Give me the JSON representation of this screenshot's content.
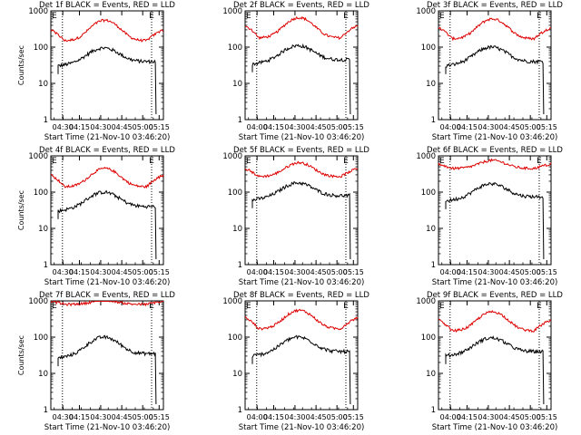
{
  "figure": {
    "start_time_label": "Start Time (21-Nov-10 03:46:20)",
    "ylabel": "Counts/sec",
    "x_tick_labels_a": [
      "04:00",
      "04:15",
      "04:30",
      "04:45",
      "05:00",
      "05:15"
    ],
    "x_tick_labels_b": [
      "04:30",
      "04:15",
      "04:30",
      "04:45",
      "05:00",
      "05:15"
    ],
    "y_tick_labels": [
      "1",
      "10",
      "100",
      "1000"
    ],
    "flag_label": "E",
    "colors": {
      "events": "#000000",
      "lld": "#dd0000",
      "axes": "#000000"
    }
  },
  "chart_data": [
    {
      "type": "line",
      "panel": 1,
      "title": "Det 1f BLACK = Events, RED = LLD",
      "xticks": [
        "04:30",
        "04:15",
        "04:30",
        "04:45",
        "05:00",
        "05:15"
      ],
      "ylabel": "Counts/sec",
      "xlabel": "Start Time (21-Nov-10 03:46:20)",
      "yscale": "log",
      "ylim": [
        1,
        1000
      ],
      "series": [
        {
          "name": "Events",
          "color": "#000000",
          "baseline": 40,
          "peak": 95
        },
        {
          "name": "LLD",
          "color": "#dd0000",
          "edge": 300,
          "trough": 150,
          "peak": 550
        }
      ]
    },
    {
      "type": "line",
      "panel": 2,
      "title": "Det 2f BLACK = Events, RED = LLD",
      "xticks": [
        "04:00",
        "04:15",
        "04:30",
        "04:45",
        "05:00",
        "05:15"
      ],
      "ylabel": "",
      "xlabel": "Start Time (21-Nov-10 03:46:20)",
      "yscale": "log",
      "ylim": [
        1,
        1000
      ],
      "series": [
        {
          "name": "Events",
          "color": "#000000",
          "baseline": 45,
          "peak": 110
        },
        {
          "name": "LLD",
          "color": "#dd0000",
          "edge": 400,
          "trough": 180,
          "peak": 650
        }
      ]
    },
    {
      "type": "line",
      "panel": 3,
      "title": "Det 3f BLACK = Events, RED = LLD",
      "xticks": [
        "04:00",
        "04:15",
        "04:30",
        "04:45",
        "05:00",
        "05:15"
      ],
      "ylabel": "",
      "xlabel": "Start Time (21-Nov-10 03:46:20)",
      "yscale": "log",
      "ylim": [
        1,
        1000
      ],
      "series": [
        {
          "name": "Events",
          "color": "#000000",
          "baseline": 40,
          "peak": 100
        },
        {
          "name": "LLD",
          "color": "#dd0000",
          "edge": 350,
          "trough": 170,
          "peak": 600
        }
      ]
    },
    {
      "type": "line",
      "panel": 4,
      "title": "Det 4f BLACK = Events, RED = LLD",
      "xticks": [
        "04:30",
        "04:15",
        "04:30",
        "04:45",
        "05:00",
        "05:15"
      ],
      "ylabel": "Counts/sec",
      "xlabel": "Start Time (21-Nov-10 03:46:20)",
      "yscale": "log",
      "ylim": [
        1,
        1000
      ],
      "series": [
        {
          "name": "Events",
          "color": "#000000",
          "baseline": 40,
          "peak": 100
        },
        {
          "name": "LLD",
          "color": "#dd0000",
          "edge": 300,
          "trough": 140,
          "peak": 450
        }
      ]
    },
    {
      "type": "line",
      "panel": 5,
      "title": "Det 5f BLACK = Events, RED = LLD",
      "xticks": [
        "04:00",
        "04:15",
        "04:30",
        "04:45",
        "05:00",
        "05:15"
      ],
      "ylabel": "",
      "xlabel": "Start Time (21-Nov-10 03:46:20)",
      "yscale": "log",
      "ylim": [
        1,
        1000
      ],
      "series": [
        {
          "name": "Events",
          "color": "#000000",
          "baseline": 80,
          "peak": 180
        },
        {
          "name": "LLD",
          "color": "#dd0000",
          "edge": 450,
          "trough": 270,
          "peak": 650
        }
      ]
    },
    {
      "type": "line",
      "panel": 6,
      "title": "Det 6f BLACK = Events, RED = LLD",
      "xticks": [
        "04:00",
        "04:15",
        "04:30",
        "04:45",
        "05:00",
        "05:15"
      ],
      "ylabel": "",
      "xlabel": "Start Time (21-Nov-10 03:46:20)",
      "yscale": "log",
      "ylim": [
        1,
        1000
      ],
      "series": [
        {
          "name": "Events",
          "color": "#000000",
          "baseline": 75,
          "peak": 170
        },
        {
          "name": "LLD",
          "color": "#dd0000",
          "edge": 600,
          "trough": 450,
          "peak": 750
        }
      ]
    },
    {
      "type": "line",
      "panel": 7,
      "title": "Det 7f BLACK = Events, RED = LLD",
      "xticks": [
        "04:30",
        "04:15",
        "04:30",
        "04:45",
        "05:00",
        "05:15"
      ],
      "ylabel": "Counts/sec",
      "xlabel": "Start Time (21-Nov-10 03:46:20)",
      "yscale": "log",
      "ylim": [
        1,
        1000
      ],
      "series": [
        {
          "name": "Events",
          "color": "#000000",
          "baseline": 35,
          "peak": 100
        },
        {
          "name": "LLD",
          "color": "#dd0000",
          "edge": 1000,
          "trough": 800,
          "peak": 1050
        }
      ]
    },
    {
      "type": "line",
      "panel": 8,
      "title": "Det 8f BLACK = Events, RED = LLD",
      "xticks": [
        "04:00",
        "04:15",
        "04:30",
        "04:45",
        "05:00",
        "05:15"
      ],
      "ylabel": "",
      "xlabel": "Start Time (21-Nov-10 03:46:20)",
      "yscale": "log",
      "ylim": [
        1,
        1000
      ],
      "series": [
        {
          "name": "Events",
          "color": "#000000",
          "baseline": 40,
          "peak": 100
        },
        {
          "name": "LLD",
          "color": "#dd0000",
          "edge": 350,
          "trough": 170,
          "peak": 550
        }
      ]
    },
    {
      "type": "line",
      "panel": 9,
      "title": "Det 9f BLACK = Events, RED = LLD",
      "xticks": [
        "04:00",
        "04:15",
        "04:30",
        "04:45",
        "05:00",
        "05:15"
      ],
      "ylabel": "",
      "xlabel": "Start Time (21-Nov-10 03:46:20)",
      "yscale": "log",
      "ylim": [
        1,
        1000
      ],
      "series": [
        {
          "name": "Events",
          "color": "#000000",
          "baseline": 40,
          "peak": 95
        },
        {
          "name": "LLD",
          "color": "#dd0000",
          "edge": 300,
          "trough": 150,
          "peak": 500
        }
      ]
    }
  ]
}
